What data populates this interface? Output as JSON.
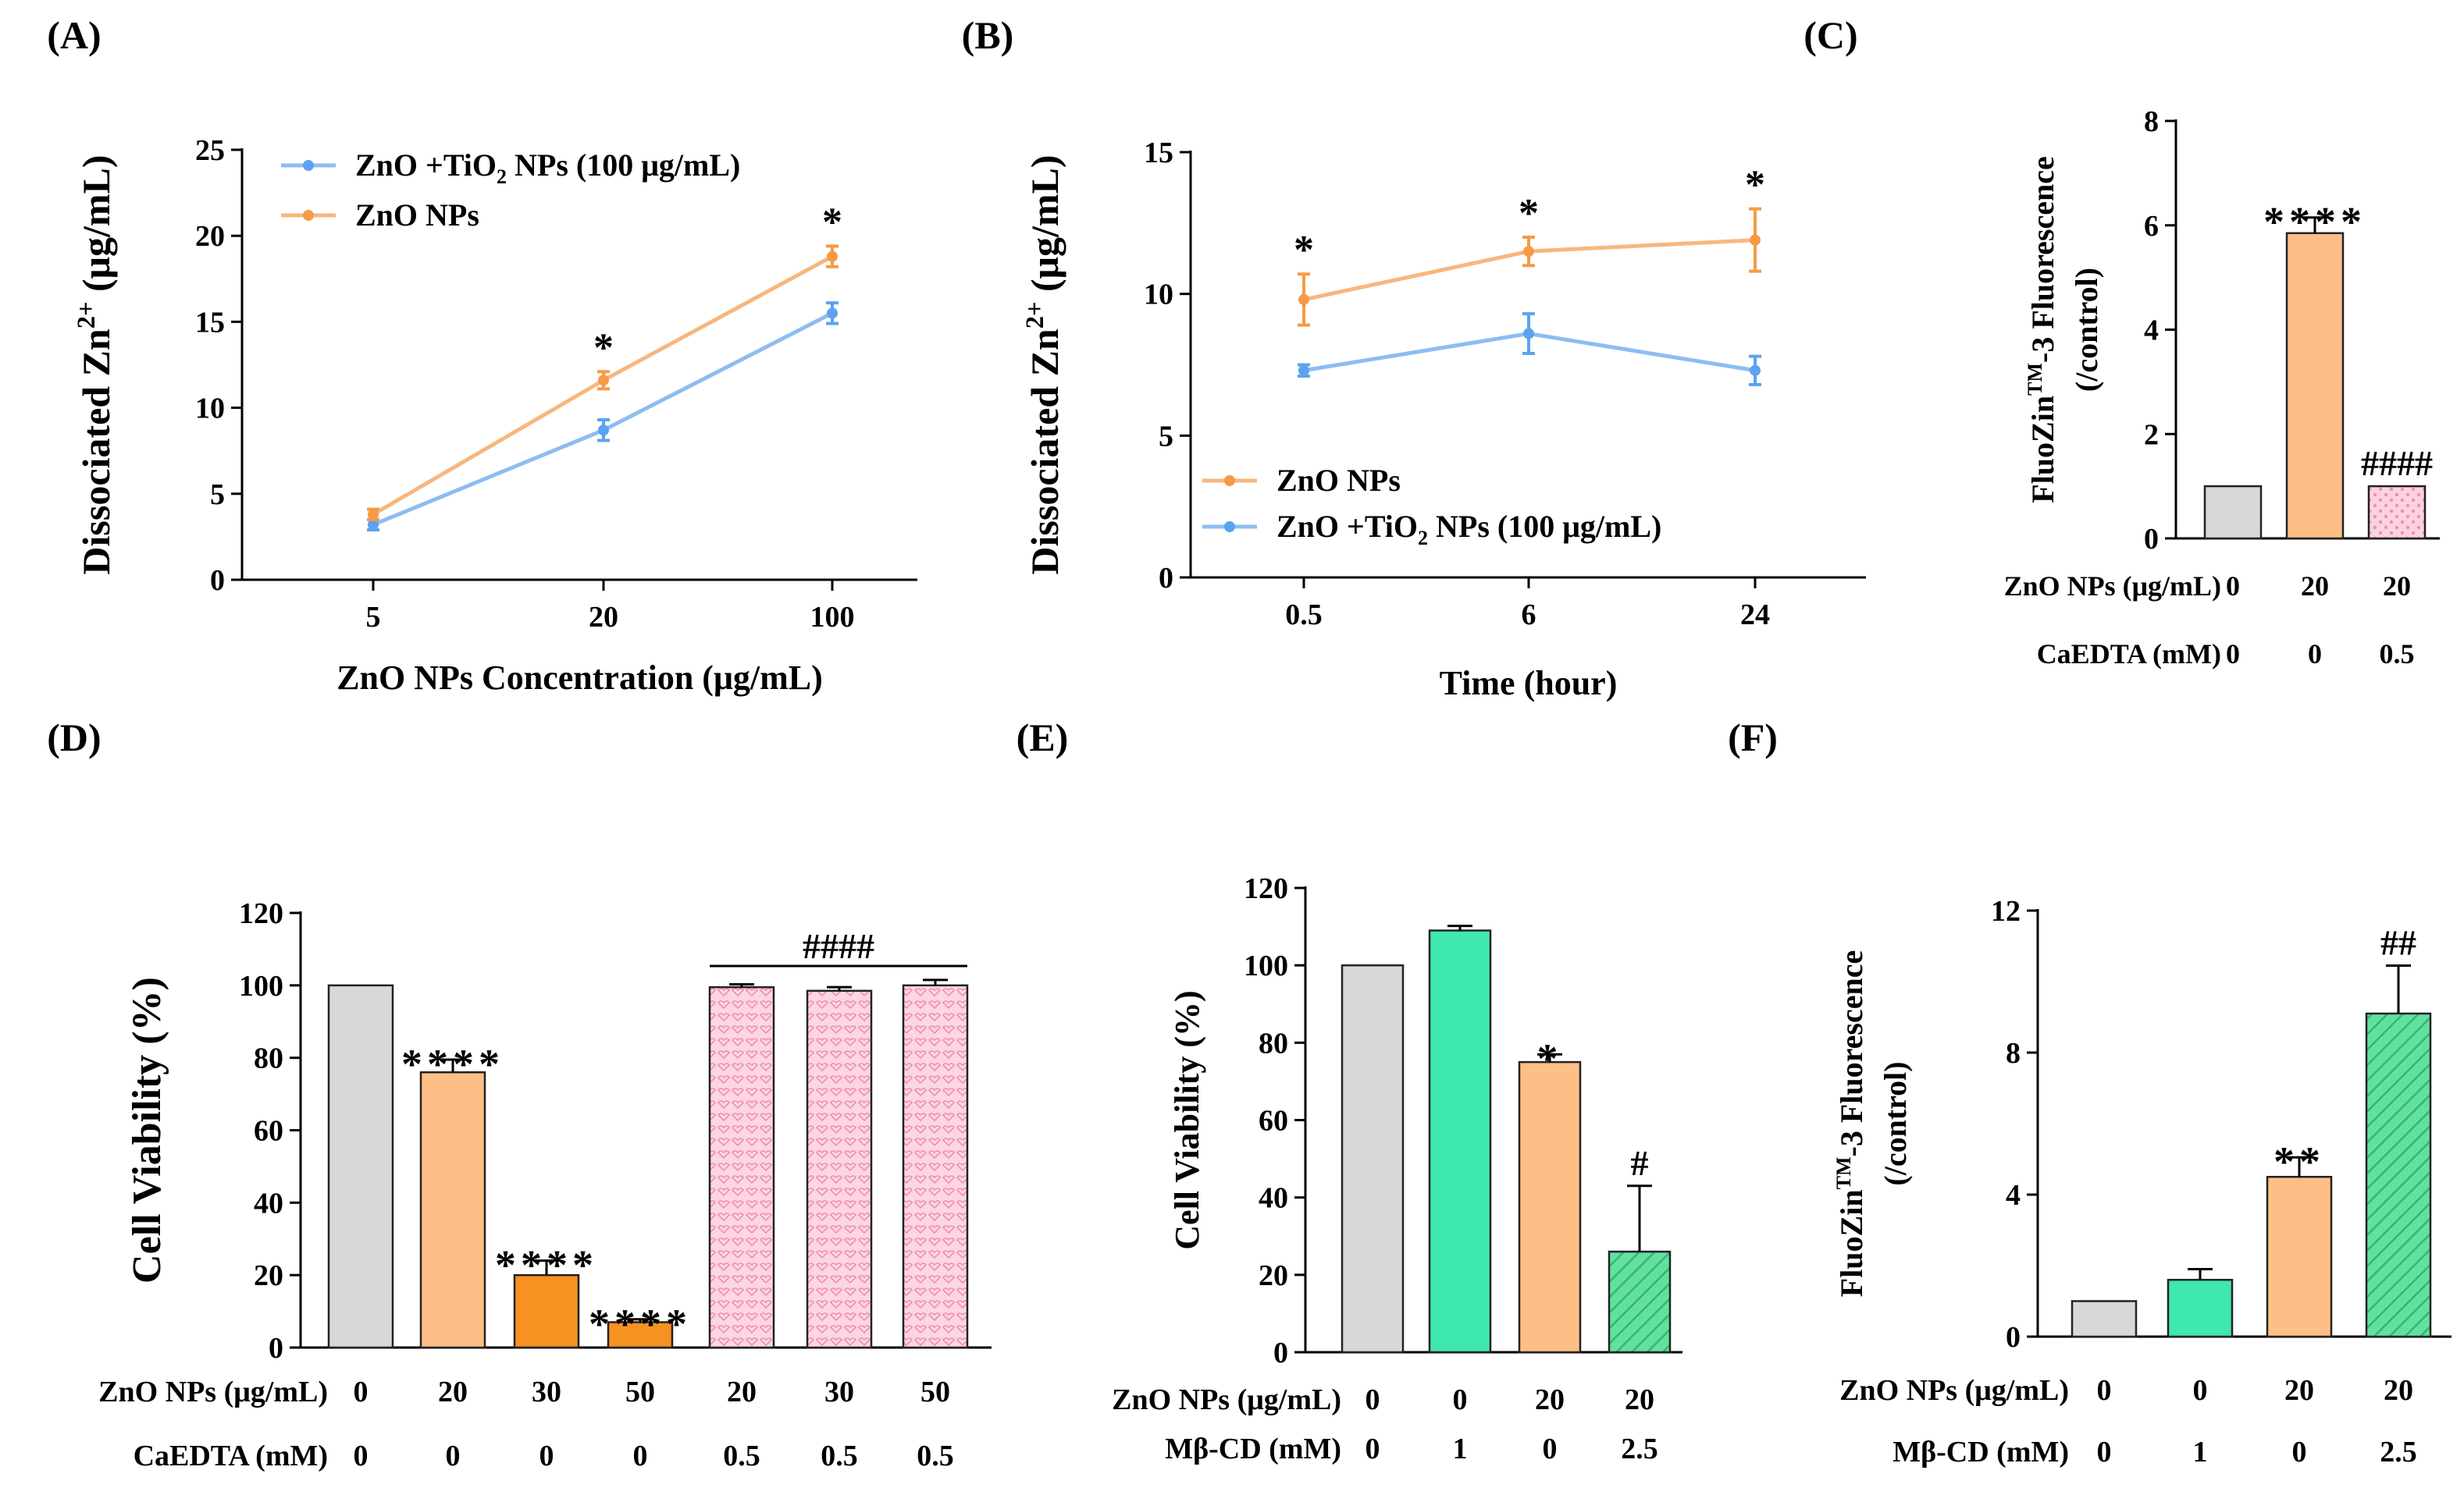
{
  "colors": {
    "orange": "#f79a45",
    "blue": "#5ba3ee",
    "gray": "#d8d8d8",
    "light_orange": "#fdbf86",
    "dark_orange": "#f79121",
    "pink": "#f9c4d6",
    "green": "#3ee8b0",
    "green_hatch": "#46d684",
    "line_orange": "#f7b77f",
    "line_blue": "#8cbdf0"
  },
  "chart_data": [
    {
      "id": "A",
      "panel_label": "(A)",
      "type": "line",
      "xlabel": "ZnO NPs Concentration (μg/mL)",
      "ylabel_main": "Dissociated Zn",
      "ylabel_sup": "2+",
      "ylabel_unit": " (μg/mL)",
      "categories": [
        "5",
        "20",
        "100"
      ],
      "ylim": [
        0,
        25
      ],
      "yticks": [
        "0",
        "5",
        "10",
        "15",
        "20",
        "25"
      ],
      "series": [
        {
          "name": "ZnO +TiO₂ NPs (100 μg/mL)",
          "name_parts": [
            "ZnO +TiO",
            "2",
            " NPs (100 μg/mL)"
          ],
          "color": "blue",
          "values": [
            3.2,
            8.7,
            15.5
          ],
          "errors": [
            0.3,
            0.6,
            0.6
          ]
        },
        {
          "name": "ZnO NPs",
          "color": "orange",
          "values": [
            3.8,
            11.6,
            18.8
          ],
          "errors": [
            0.3,
            0.5,
            0.6
          ]
        }
      ],
      "annotations": [
        {
          "category": "20",
          "text": "*"
        },
        {
          "category": "100",
          "text": "*"
        }
      ]
    },
    {
      "id": "B",
      "panel_label": "(B)",
      "type": "line",
      "xlabel": "Time (hour)",
      "ylabel_main": "Dissociated Zn",
      "ylabel_sup": "2+",
      "ylabel_unit": " (μg/mL)",
      "categories": [
        "0.5",
        "6",
        "24"
      ],
      "ylim": [
        0,
        15
      ],
      "yticks": [
        "0",
        "5",
        "10",
        "15"
      ],
      "series": [
        {
          "name": "ZnO NPs",
          "color": "orange",
          "values": [
            9.8,
            11.5,
            11.9
          ],
          "errors": [
            0.9,
            0.5,
            1.1
          ]
        },
        {
          "name": "ZnO +TiO₂ NPs (100 μg/mL)",
          "name_parts": [
            "ZnO +TiO",
            "2",
            " NPs (100 μg/mL)"
          ],
          "color": "blue",
          "values": [
            7.3,
            8.6,
            7.3
          ],
          "errors": [
            0.2,
            0.7,
            0.5
          ]
        }
      ],
      "annotations": [
        {
          "category": "0.5",
          "text": "*"
        },
        {
          "category": "6",
          "text": "*"
        },
        {
          "category": "24",
          "text": "*"
        }
      ]
    },
    {
      "id": "C",
      "panel_label": "(C)",
      "type": "bar",
      "ylabel_main": "FluoZin",
      "ylabel_sup": "TM",
      "ylabel_unit": "-3 Fluorescence",
      "ylabel_line2": "(/control)",
      "ylim": [
        0,
        8
      ],
      "yticks": [
        "0",
        "2",
        "4",
        "6",
        "8"
      ],
      "values": [
        1.0,
        5.85,
        1.0
      ],
      "errors": [
        0,
        0.3,
        0
      ],
      "bar_fill": [
        "gray",
        "light_orange",
        "pink"
      ],
      "bar_pattern": [
        "none",
        "none",
        "dots"
      ],
      "annotations": [
        "",
        "****",
        "####"
      ],
      "condition_rows": [
        {
          "label": "ZnO NPs (μg/mL)",
          "values": [
            "0",
            "20",
            "20"
          ]
        },
        {
          "label": "CaEDTA  (mM)",
          "values": [
            "0",
            "0",
            "0.5"
          ]
        }
      ]
    },
    {
      "id": "D",
      "panel_label": "(D)",
      "type": "bar",
      "ylabel_main": "Cell Viability (%)",
      "ylim": [
        0,
        120
      ],
      "yticks": [
        "0",
        "20",
        "40",
        "60",
        "80",
        "100",
        "120"
      ],
      "values": [
        100,
        76,
        20,
        7,
        99.5,
        98.5,
        100
      ],
      "errors": [
        0,
        3.5,
        4,
        0.8,
        0.8,
        1.0,
        1.5
      ],
      "bar_fill": [
        "gray",
        "light_orange",
        "dark_orange",
        "dark_orange",
        "pink",
        "pink",
        "pink"
      ],
      "bar_pattern": [
        "none",
        "none",
        "none",
        "none",
        "hearts",
        "hearts",
        "hearts"
      ],
      "annotations": [
        "",
        "****",
        "****",
        "****",
        "",
        "",
        ""
      ],
      "bracket": {
        "from": 4,
        "to": 6,
        "text": "####"
      },
      "condition_rows": [
        {
          "label": "ZnO NPs (μg/mL)",
          "values": [
            "0",
            "20",
            "30",
            "50",
            "20",
            "30",
            "50"
          ]
        },
        {
          "label": "CaEDTA  (mM)",
          "values": [
            "0",
            "0",
            "0",
            "0",
            "0.5",
            "0.5",
            "0.5"
          ]
        }
      ]
    },
    {
      "id": "E",
      "panel_label": "(E)",
      "type": "bar",
      "ylabel_main": "Cell Viability (%)",
      "ylim": [
        0,
        120
      ],
      "yticks": [
        "0",
        "20",
        "40",
        "60",
        "80",
        "100",
        "120"
      ],
      "values": [
        100,
        109,
        75,
        26
      ],
      "errors": [
        0,
        1.2,
        2,
        17
      ],
      "bar_fill": [
        "gray",
        "green",
        "light_orange",
        "green_hatch"
      ],
      "bar_pattern": [
        "none",
        "none",
        "none",
        "hatch"
      ],
      "annotations": [
        "",
        "",
        "*",
        "#"
      ],
      "condition_rows": [
        {
          "label": "ZnO NPs (μg/mL)",
          "values": [
            "0",
            "0",
            "20",
            "20"
          ]
        },
        {
          "label": "Mβ-CD  (mM)",
          "values": [
            "0",
            "1",
            "0",
            "2.5"
          ]
        }
      ]
    },
    {
      "id": "F",
      "panel_label": "(F)",
      "type": "bar",
      "ylabel_main": "FluoZin",
      "ylabel_sup": "TM",
      "ylabel_unit": "-3 Fluorescence",
      "ylabel_line2": "(/control)",
      "ylim": [
        0,
        12
      ],
      "yticks": [
        "0",
        "4",
        "8",
        "12"
      ],
      "values": [
        1.0,
        1.6,
        4.5,
        9.1
      ],
      "errors": [
        0,
        0.3,
        0.55,
        1.35
      ],
      "bar_fill": [
        "gray",
        "green",
        "light_orange",
        "green_hatch"
      ],
      "bar_pattern": [
        "none",
        "none",
        "none",
        "hatch"
      ],
      "annotations": [
        "",
        "",
        "**",
        "##"
      ],
      "condition_rows": [
        {
          "label": "ZnO NPs (μg/mL)",
          "values": [
            "0",
            "0",
            "20",
            "20"
          ]
        },
        {
          "label": "Mβ-CD  (mM)",
          "values": [
            "0",
            "1",
            "0",
            "2.5"
          ]
        }
      ]
    }
  ]
}
